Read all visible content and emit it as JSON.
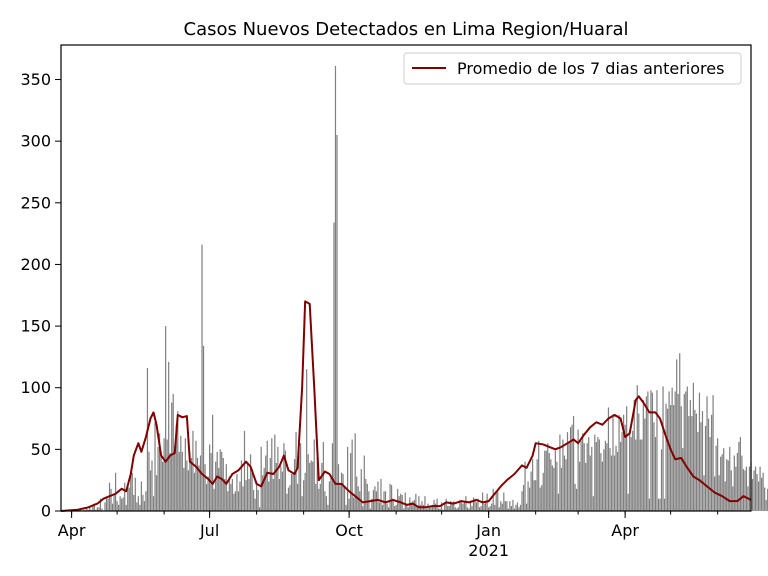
{
  "chart_data": {
    "type": "bar",
    "title": "Casos Nuevos Detectados en Lima Region/Huaral",
    "xlabel": "",
    "ylabel": "",
    "x_ticks": [
      {
        "label": "Apr",
        "date": "2020-04-01"
      },
      {
        "label": "Jul",
        "date": "2020-07-01"
      },
      {
        "label": "Oct",
        "date": "2020-10-01"
      },
      {
        "label": "Jan",
        "date": "2021-01-01",
        "sublabel": "2021"
      },
      {
        "label": "Apr",
        "date": "2021-04-01"
      }
    ],
    "xlim": [
      "2020-03-25",
      "2021-06-23"
    ],
    "ylim": [
      0,
      378
    ],
    "y_ticks": [
      0,
      50,
      100,
      150,
      200,
      250,
      300,
      350
    ],
    "legend": {
      "position": "top-right",
      "entries": [
        "Promedio de los 7 dias anteriores"
      ]
    },
    "colors": {
      "bars": "#808080",
      "line": "#800000"
    },
    "series": [
      {
        "kind": "bars",
        "start_date": "2020-03-25",
        "step_days": 1,
        "values": [
          0,
          0,
          0,
          0,
          1,
          0,
          0,
          1,
          1,
          1,
          0,
          0,
          0,
          1,
          0,
          1,
          1,
          2,
          1,
          4,
          1,
          4,
          6,
          1,
          3,
          3,
          10,
          2,
          0,
          7,
          10,
          10,
          23,
          18,
          6,
          14,
          31,
          8,
          5,
          12,
          10,
          11,
          23,
          5,
          22,
          19,
          29,
          31,
          13,
          27,
          7,
          12,
          5,
          24,
          13,
          8,
          16,
          116,
          48,
          33,
          41,
          12,
          72,
          29,
          52,
          63,
          47,
          40,
          59,
          150,
          58,
          121,
          47,
          88,
          95,
          53,
          70,
          81,
          48,
          61,
          48,
          35,
          59,
          41,
          33,
          48,
          43,
          65,
          31,
          57,
          43,
          37,
          45,
          216,
          134,
          38,
          22,
          28,
          54,
          47,
          78,
          18,
          40,
          48,
          35,
          50,
          48,
          43,
          26,
          38,
          16,
          28,
          22,
          26,
          14,
          16,
          30,
          16,
          24,
          41,
          20,
          65,
          25,
          39,
          26,
          46,
          34,
          17,
          10,
          22,
          17,
          3,
          52,
          29,
          35,
          45,
          57,
          24,
          43,
          59,
          26,
          62,
          39,
          52,
          26,
          36,
          32,
          55,
          49,
          14,
          19,
          21,
          30,
          31,
          42,
          64,
          22,
          48,
          55,
          12,
          25,
          31,
          115,
          46,
          39,
          41,
          40,
          58,
          22,
          44,
          18,
          22,
          39,
          56,
          16,
          12,
          5,
          24,
          27,
          55,
          234,
          361,
          305,
          38,
          22,
          31,
          30,
          19,
          5,
          52,
          10,
          47,
          58,
          11,
          63,
          28,
          20,
          16,
          34,
          4,
          45,
          26,
          22,
          16,
          2,
          10,
          17,
          20,
          16,
          24,
          7,
          26,
          5,
          16,
          16,
          6,
          3,
          22,
          21,
          10,
          4,
          5,
          18,
          12,
          14,
          13,
          2,
          15,
          6,
          3,
          11,
          7,
          8,
          9,
          14,
          3,
          12,
          5,
          8,
          5,
          12,
          2,
          6,
          4,
          4,
          5,
          9,
          6,
          10,
          2,
          2,
          7,
          1,
          7,
          10,
          4,
          4,
          8,
          6,
          8,
          3,
          2,
          3,
          9,
          7,
          6,
          7,
          12,
          3,
          2,
          8,
          4,
          11,
          10,
          7,
          10,
          3,
          4,
          15,
          6,
          7,
          14,
          3,
          4,
          6,
          18,
          5,
          16,
          16,
          3,
          8,
          6,
          15,
          8,
          8,
          2,
          8,
          4,
          9,
          2,
          5,
          7,
          3,
          5,
          16,
          21,
          40,
          6,
          24,
          19,
          32,
          42,
          25,
          25,
          42,
          57,
          19,
          21,
          31,
          49,
          49,
          55,
          47,
          42,
          37,
          35,
          49,
          40,
          14,
          62,
          35,
          58,
          45,
          42,
          64,
          56,
          68,
          70,
          77,
          22,
          18,
          66,
          40,
          57,
          63,
          55,
          39,
          55,
          60,
          45,
          52,
          12,
          62,
          56,
          60,
          58,
          47,
          40,
          50,
          57,
          55,
          84,
          51,
          45,
          78,
          45,
          53,
          48,
          78,
          56,
          64,
          78,
          70,
          85,
          14,
          63,
          60,
          65,
          90,
          58,
          102,
          79,
          58,
          58,
          90,
          75,
          93,
          97,
          10,
          98,
          96,
          72,
          60,
          98,
          10,
          10,
          50,
          101,
          10,
          87,
          83,
          97,
          86,
          100,
          86,
          97,
          123,
          95,
          128,
          85,
          51,
          95,
          97,
          101,
          77,
          90,
          77,
          104,
          82,
          79,
          64,
          96,
          72,
          81,
          29,
          69,
          93,
          75,
          60,
          78,
          94,
          28,
          53,
          59,
          29,
          44,
          46,
          51,
          24,
          42,
          41,
          52,
          33,
          20,
          45,
          36,
          47,
          56,
          60,
          45,
          34,
          33,
          36,
          20,
          36,
          40,
          26,
          33,
          36,
          30,
          24,
          36,
          27,
          31,
          19,
          9,
          18,
          31,
          33,
          25,
          24,
          26,
          19,
          11,
          20,
          16,
          13,
          11,
          14,
          7,
          8,
          8,
          6,
          18,
          14,
          17,
          13,
          9,
          8,
          7,
          5,
          13,
          8,
          12,
          2,
          5
        ]
      },
      {
        "kind": "line",
        "name": "Promedio de los 7 dias anteriores",
        "points": [
          [
            "2020-03-25",
            0
          ],
          [
            "2020-04-05",
            1
          ],
          [
            "2020-04-12",
            3
          ],
          [
            "2020-04-18",
            6
          ],
          [
            "2020-04-22",
            10
          ],
          [
            "2020-04-26",
            12
          ],
          [
            "2020-04-30",
            14
          ],
          [
            "2020-05-04",
            18
          ],
          [
            "2020-05-07",
            16
          ],
          [
            "2020-05-10",
            30
          ],
          [
            "2020-05-12",
            45
          ],
          [
            "2020-05-15",
            55
          ],
          [
            "2020-05-17",
            48
          ],
          [
            "2020-05-20",
            60
          ],
          [
            "2020-05-23",
            75
          ],
          [
            "2020-05-25",
            80
          ],
          [
            "2020-05-27",
            70
          ],
          [
            "2020-05-30",
            45
          ],
          [
            "2020-06-02",
            40
          ],
          [
            "2020-06-05",
            45
          ],
          [
            "2020-06-08",
            47
          ],
          [
            "2020-06-10",
            78
          ],
          [
            "2020-06-13",
            76
          ],
          [
            "2020-06-16",
            77
          ],
          [
            "2020-06-18",
            40
          ],
          [
            "2020-06-22",
            36
          ],
          [
            "2020-06-26",
            30
          ],
          [
            "2020-06-30",
            26
          ],
          [
            "2020-07-03",
            22
          ],
          [
            "2020-07-06",
            28
          ],
          [
            "2020-07-09",
            26
          ],
          [
            "2020-07-12",
            22
          ],
          [
            "2020-07-16",
            30
          ],
          [
            "2020-07-20",
            33
          ],
          [
            "2020-07-25",
            40
          ],
          [
            "2020-07-28",
            36
          ],
          [
            "2020-08-01",
            22
          ],
          [
            "2020-08-04",
            20
          ],
          [
            "2020-08-08",
            31
          ],
          [
            "2020-08-12",
            30
          ],
          [
            "2020-08-16",
            36
          ],
          [
            "2020-08-19",
            45
          ],
          [
            "2020-08-22",
            33
          ],
          [
            "2020-08-26",
            30
          ],
          [
            "2020-08-28",
            35
          ],
          [
            "2020-08-31",
            100
          ],
          [
            "2020-09-02",
            170
          ],
          [
            "2020-09-05",
            168
          ],
          [
            "2020-09-08",
            100
          ],
          [
            "2020-09-11",
            25
          ],
          [
            "2020-09-15",
            32
          ],
          [
            "2020-09-18",
            30
          ],
          [
            "2020-09-22",
            22
          ],
          [
            "2020-09-26",
            22
          ],
          [
            "2020-10-01",
            16
          ],
          [
            "2020-10-05",
            12
          ],
          [
            "2020-10-10",
            7
          ],
          [
            "2020-10-15",
            8
          ],
          [
            "2020-10-20",
            9
          ],
          [
            "2020-10-25",
            7
          ],
          [
            "2020-10-30",
            9
          ],
          [
            "2020-11-04",
            7
          ],
          [
            "2020-11-08",
            5
          ],
          [
            "2020-11-12",
            6
          ],
          [
            "2020-11-16",
            3
          ],
          [
            "2020-11-20",
            3
          ],
          [
            "2020-11-25",
            4
          ],
          [
            "2020-11-30",
            4
          ],
          [
            "2020-12-04",
            7
          ],
          [
            "2020-12-09",
            6
          ],
          [
            "2020-12-14",
            8
          ],
          [
            "2020-12-19",
            7
          ],
          [
            "2020-12-24",
            9
          ],
          [
            "2020-12-28",
            7
          ],
          [
            "2021-01-01",
            8
          ],
          [
            "2021-01-05",
            14
          ],
          [
            "2021-01-09",
            20
          ],
          [
            "2021-01-13",
            25
          ],
          [
            "2021-01-18",
            30
          ],
          [
            "2021-01-23",
            37
          ],
          [
            "2021-01-26",
            35
          ],
          [
            "2021-01-30",
            45
          ],
          [
            "2021-02-01",
            55
          ],
          [
            "2021-02-06",
            54
          ],
          [
            "2021-02-10",
            52
          ],
          [
            "2021-02-14",
            50
          ],
          [
            "2021-02-18",
            52
          ],
          [
            "2021-02-22",
            55
          ],
          [
            "2021-02-26",
            58
          ],
          [
            "2021-03-01",
            55
          ],
          [
            "2021-03-05",
            62
          ],
          [
            "2021-03-09",
            68
          ],
          [
            "2021-03-13",
            72
          ],
          [
            "2021-03-17",
            70
          ],
          [
            "2021-03-21",
            75
          ],
          [
            "2021-03-25",
            78
          ],
          [
            "2021-03-29",
            75
          ],
          [
            "2021-04-01",
            60
          ],
          [
            "2021-04-04",
            63
          ],
          [
            "2021-04-08",
            90
          ],
          [
            "2021-04-10",
            93
          ],
          [
            "2021-04-13",
            88
          ],
          [
            "2021-04-17",
            80
          ],
          [
            "2021-04-21",
            80
          ],
          [
            "2021-04-24",
            75
          ],
          [
            "2021-04-28",
            60
          ],
          [
            "2021-05-01",
            50
          ],
          [
            "2021-05-04",
            42
          ],
          [
            "2021-05-08",
            43
          ],
          [
            "2021-05-12",
            35
          ],
          [
            "2021-05-16",
            28
          ],
          [
            "2021-05-20",
            25
          ],
          [
            "2021-05-25",
            20
          ],
          [
            "2021-05-30",
            15
          ],
          [
            "2021-06-04",
            12
          ],
          [
            "2021-06-09",
            8
          ],
          [
            "2021-06-14",
            8
          ],
          [
            "2021-06-18",
            12
          ],
          [
            "2021-06-23",
            9
          ]
        ]
      }
    ]
  }
}
